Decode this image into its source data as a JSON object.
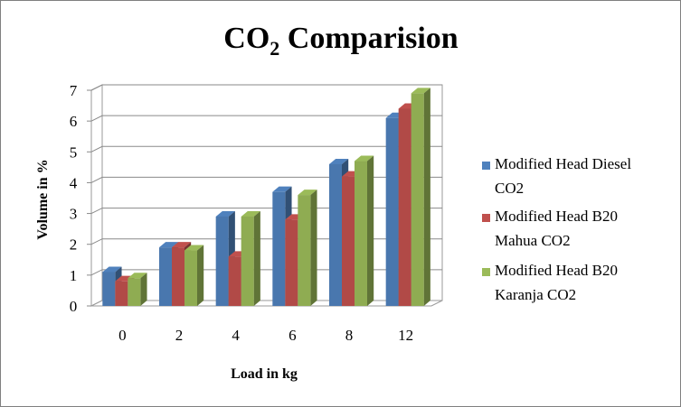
{
  "chart_data": {
    "type": "bar",
    "title": "CO2 Comparision",
    "title_main": "CO",
    "title_sub": "2",
    "title_rest": " Comparision",
    "xlabel": "Load in kg",
    "ylabel": "Volume in %",
    "categories": [
      "0",
      "2",
      "4",
      "6",
      "8",
      "12"
    ],
    "ylim": [
      0,
      7
    ],
    "yticks": [
      "0",
      "1",
      "2",
      "3",
      "4",
      "5",
      "6",
      "7"
    ],
    "grid": true,
    "legend_position": "right",
    "series": [
      {
        "name": "Modified Head Diesel CO2",
        "legend_lines": [
          "Modified Head Diesel",
          "CO2"
        ],
        "color": "#4f81bd",
        "values": [
          1.1,
          1.9,
          2.9,
          3.7,
          4.6,
          6.1
        ]
      },
      {
        "name": "Modified Head B20 Mahua CO2",
        "legend_lines": [
          "Modified Head B20",
          "Mahua CO2"
        ],
        "color": "#c0504d",
        "values": [
          0.8,
          1.9,
          1.6,
          2.8,
          4.2,
          6.4
        ]
      },
      {
        "name": "Modified Head B20 Karanja CO2",
        "legend_lines": [
          "Modified Head B20",
          "Karanja CO2"
        ],
        "color": "#9bbb59",
        "values": [
          0.9,
          1.8,
          2.9,
          3.6,
          4.7,
          6.9
        ]
      }
    ]
  }
}
